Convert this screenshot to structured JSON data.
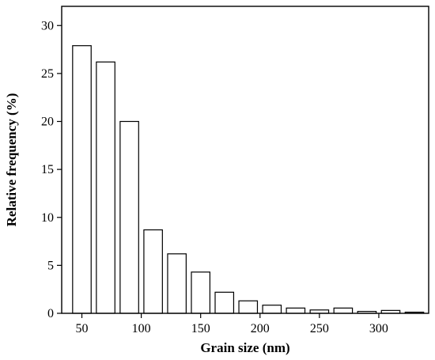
{
  "chart_data": {
    "type": "bar",
    "title": "",
    "xlabel": "Grain size (nm)",
    "ylabel": "Relative frequency (%)",
    "bin_width": 20,
    "x": [
      50,
      70,
      90,
      110,
      130,
      150,
      170,
      190,
      210,
      230,
      250,
      270,
      290,
      310,
      330
    ],
    "values": [
      27.9,
      26.2,
      20.0,
      8.7,
      6.2,
      4.3,
      2.2,
      1.3,
      0.85,
      0.55,
      0.35,
      0.55,
      0.2,
      0.3,
      0.12
    ],
    "xlim": [
      33,
      342
    ],
    "ylim": [
      0,
      32
    ],
    "xticks": [
      50,
      100,
      150,
      200,
      250,
      300
    ],
    "yticks": [
      0,
      5,
      10,
      15,
      20,
      25,
      30
    ],
    "xtick_labels": [
      "50",
      "100",
      "150",
      "200",
      "250",
      "300"
    ],
    "ytick_labels": [
      "0",
      "5",
      "10",
      "15",
      "20",
      "25",
      "30"
    ],
    "grid": false,
    "legend": "none",
    "bar_fill": "#ffffff",
    "bar_edge": "#000000"
  }
}
